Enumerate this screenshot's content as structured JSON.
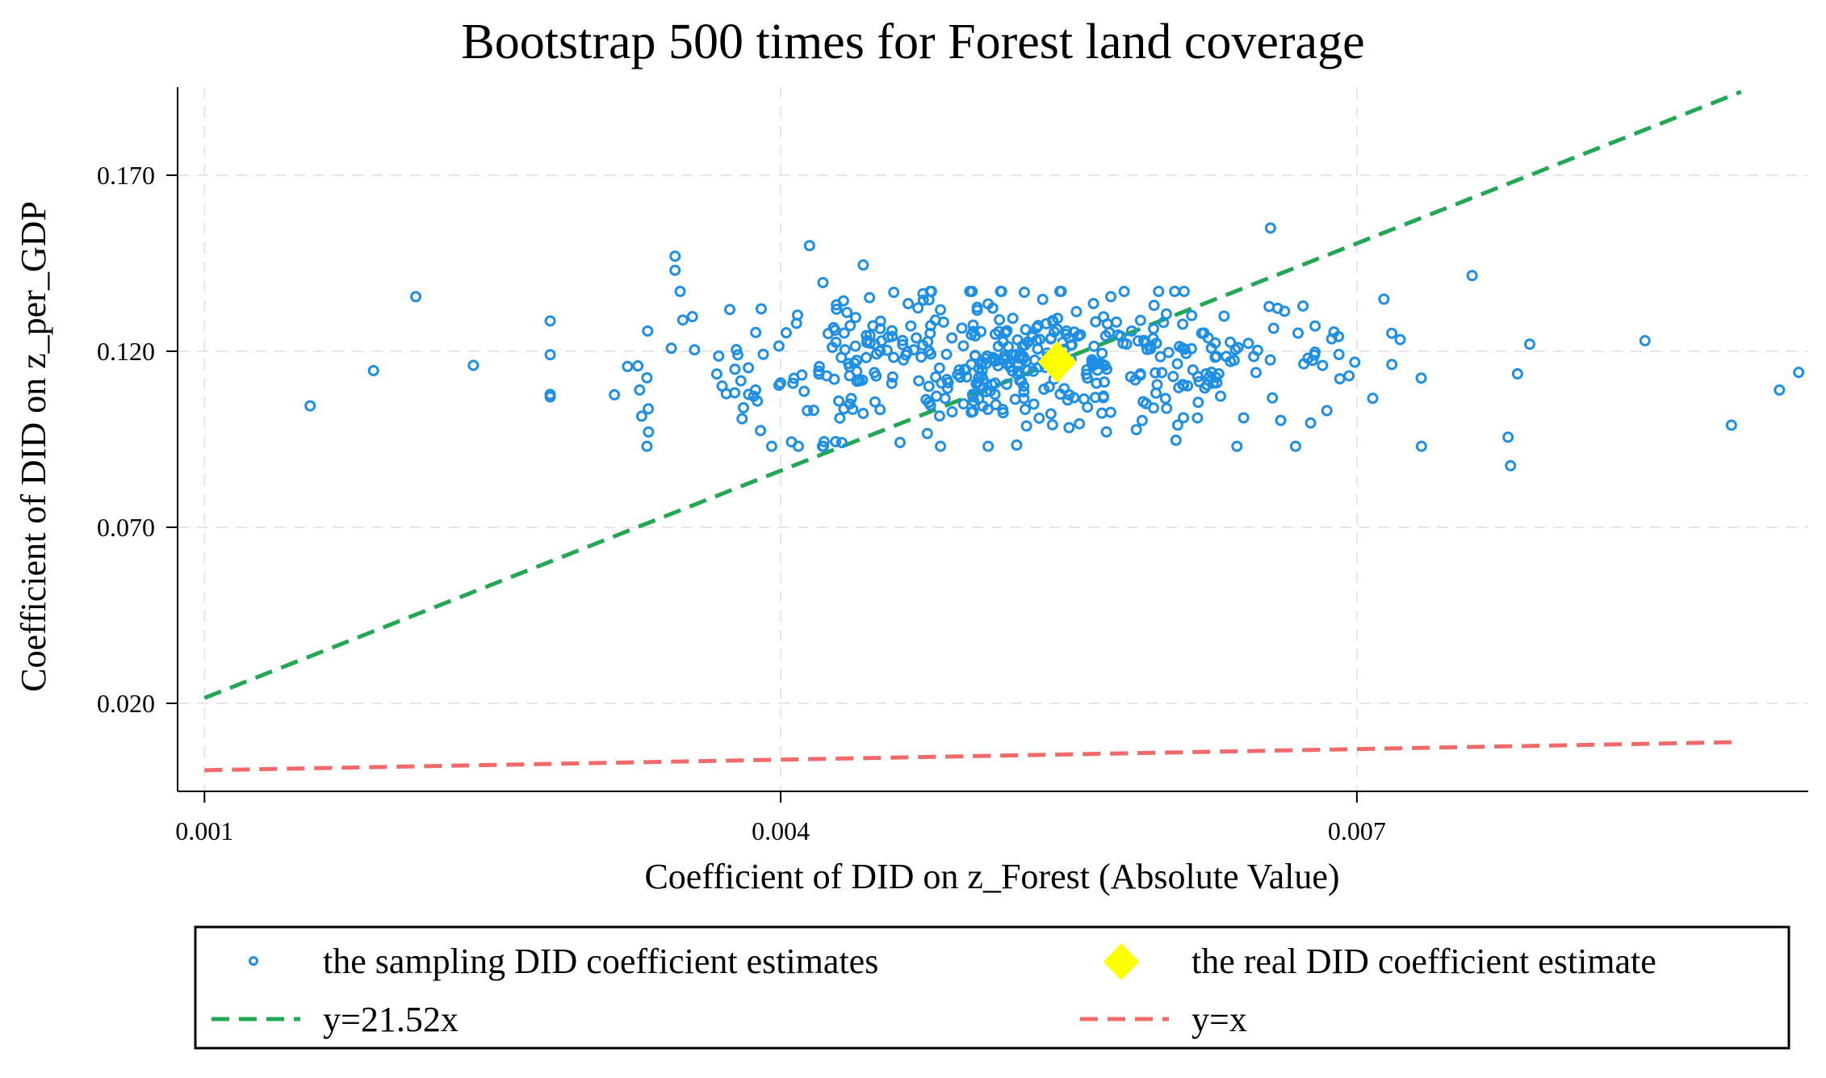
{
  "chart_data": {
    "type": "scatter",
    "title": "Bootstrap 500 times for Forest land coverage",
    "xlabel": "Coefficient of DID on z_Forest (Absolute Value)",
    "ylabel": "Coefficient of DID on z_per_GDP",
    "xlim": [
      0.00086,
      0.00935
    ],
    "ylim": [
      -0.005,
      0.195
    ],
    "x_ticks": [
      0.001,
      0.004,
      0.007
    ],
    "x_tick_labels": [
      "0.001",
      "0.004",
      "0.007"
    ],
    "y_ticks": [
      0.02,
      0.07,
      0.12,
      0.17
    ],
    "y_tick_labels": [
      "0.020",
      "0.070",
      "0.120",
      "0.170"
    ],
    "grid": true,
    "colors": {
      "points": "#1f8fe6",
      "real": "#ffff00",
      "fit_line": "#22a854",
      "identity_line": "#f06a6a"
    },
    "series": [
      {
        "name": "the sampling DID coefficient estimates",
        "kind": "points",
        "sample_count": 500,
        "x_center": 0.0052,
        "x_spread": 0.00095,
        "y_center": 0.1165,
        "y_spread": 0.0105,
        "x": [
          0.00155,
          0.00188,
          0.0021,
          0.0024,
          0.00415,
          0.00655,
          0.00422,
          0.00443,
          0.00345,
          0.0076,
          0.00895,
          0.0093,
          0.0092,
          0.0078,
          0.00515,
          0.0079,
          0.00345,
          0.0085
        ],
        "y": [
          0.1045,
          0.1145,
          0.1355,
          0.116,
          0.15,
          0.155,
          0.1395,
          0.1445,
          0.147,
          0.1415,
          0.099,
          0.114,
          0.109,
          0.0875,
          0.137,
          0.122,
          0.143,
          0.123
        ]
      },
      {
        "name": "the real DID coefficient estimate",
        "kind": "marker",
        "x": [
          0.00544
        ],
        "y": [
          0.117
        ]
      },
      {
        "name": "y=21.52x",
        "kind": "line",
        "slope": 21.52,
        "x_range": [
          0.001,
          0.009
        ]
      },
      {
        "name": "y=x",
        "kind": "line",
        "slope": 1,
        "x_range": [
          0.001,
          0.00895
        ],
        "note": "drawn relative to the plot floor in the source figure"
      }
    ],
    "legend": {
      "position": "bottom",
      "entries": [
        {
          "label": "the sampling DID coefficient estimates",
          "symbol": "circle"
        },
        {
          "label": "the real DID coefficient estimate",
          "symbol": "diamond"
        },
        {
          "label": "y=21.52x",
          "symbol": "dash-green"
        },
        {
          "label": "y=x",
          "symbol": "dash-red"
        }
      ]
    }
  }
}
